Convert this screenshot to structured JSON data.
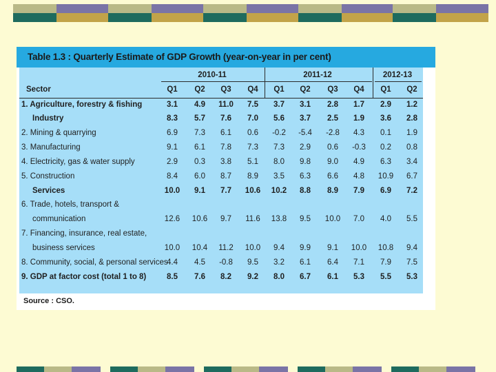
{
  "colors": {
    "background": "#fdfbd3",
    "band_teal": "#1e6b5e",
    "band_sage": "#b9b987",
    "band_purple": "#7a74a6",
    "band_gold": "#c2a349",
    "title_bar": "#26a9e0",
    "table_bg": "#a6def8"
  },
  "table": {
    "title": "Table 1.3 : Quarterly Estimate of GDP Growth (year-on-year in per cent)",
    "sector_header": "Sector",
    "year_groups": [
      "2010-11",
      "2011-12",
      "2012-13"
    ],
    "quarters": [
      "Q1",
      "Q2",
      "Q3",
      "Q4",
      "Q1",
      "Q2",
      "Q3",
      "Q4",
      "Q1",
      "Q2"
    ],
    "rows": [
      {
        "label": [
          "1. Agriculture, forestry & fishing"
        ],
        "bold": true,
        "values": [
          "3.1",
          "4.9",
          "11.0",
          "7.5",
          "3.7",
          "3.1",
          "2.8",
          "1.7",
          "2.9",
          "1.2"
        ]
      },
      {
        "label": [
          "Industry"
        ],
        "bold": true,
        "indent": true,
        "values": [
          "8.3",
          "5.7",
          "7.6",
          "7.0",
          "5.6",
          "3.7",
          "2.5",
          "1.9",
          "3.6",
          "2.8"
        ]
      },
      {
        "label": [
          "2. Mining & quarrying"
        ],
        "bold": false,
        "values": [
          "6.9",
          "7.3",
          "6.1",
          "0.6",
          "-0.2",
          "-5.4",
          "-2.8",
          "4.3",
          "0.1",
          "1.9"
        ]
      },
      {
        "label": [
          "3. Manufacturing"
        ],
        "bold": false,
        "values": [
          "9.1",
          "6.1",
          "7.8",
          "7.3",
          "7.3",
          "2.9",
          "0.6",
          "-0.3",
          "0.2",
          "0.8"
        ]
      },
      {
        "label": [
          "4. Electricity, gas & water supply"
        ],
        "bold": false,
        "values": [
          "2.9",
          "0.3",
          "3.8",
          "5.1",
          "8.0",
          "9.8",
          "9.0",
          "4.9",
          "6.3",
          "3.4"
        ]
      },
      {
        "label": [
          "5. Construction"
        ],
        "bold": false,
        "values": [
          "8.4",
          "6.0",
          "8.7",
          "8.9",
          "3.5",
          "6.3",
          "6.6",
          "4.8",
          "10.9",
          "6.7"
        ]
      },
      {
        "label": [
          "Services"
        ],
        "bold": true,
        "indent": true,
        "values": [
          "10.0",
          "9.1",
          "7.7",
          "10.6",
          "10.2",
          "8.8",
          "8.9",
          "7.9",
          "6.9",
          "7.2"
        ]
      },
      {
        "label": [
          "6. Trade, hotels, transport &",
          "communication"
        ],
        "bold": false,
        "values": [
          "12.6",
          "10.6",
          "9.7",
          "11.6",
          "13.8",
          "9.5",
          "10.0",
          "7.0",
          "4.0",
          "5.5"
        ]
      },
      {
        "label": [
          "7. Financing, insurance, real estate,",
          "business services"
        ],
        "bold": false,
        "values": [
          "10.0",
          "10.4",
          "11.2",
          "10.0",
          "9.4",
          "9.9",
          "9.1",
          "10.0",
          "10.8",
          "9.4"
        ]
      },
      {
        "label": [
          "8. Community, social, & personal services"
        ],
        "bold": false,
        "values": [
          "4.4",
          "4.5",
          "-0.8",
          "9.5",
          "3.2",
          "6.1",
          "6.4",
          "7.1",
          "7.9",
          "7.5"
        ]
      },
      {
        "label": [
          "9. GDP at factor cost (total 1 to 8)"
        ],
        "bold": true,
        "values": [
          "8.5",
          "7.6",
          "8.2",
          "9.2",
          "8.0",
          "6.7",
          "6.1",
          "5.3",
          "5.5",
          "5.3"
        ]
      }
    ],
    "source": "Source : CSO."
  }
}
